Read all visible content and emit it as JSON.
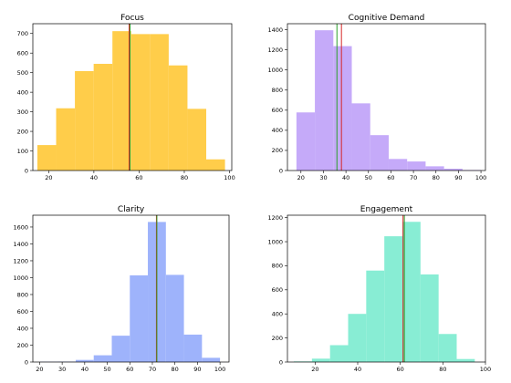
{
  "chart_data": [
    {
      "type": "histogram",
      "title": "Focus",
      "color": "#ffcd4a",
      "xlim": [
        13,
        101
      ],
      "ylim": [
        0,
        750
      ],
      "xticks": [
        20,
        40,
        60,
        80,
        100
      ],
      "yticks": [
        0,
        100,
        200,
        300,
        400,
        500,
        600,
        700
      ],
      "bins": [
        {
          "x0": 15.0,
          "x1": 23.3,
          "value": 130
        },
        {
          "x0": 23.3,
          "x1": 31.6,
          "value": 318
        },
        {
          "x0": 31.6,
          "x1": 39.9,
          "value": 508
        },
        {
          "x0": 39.9,
          "x1": 48.2,
          "value": 545
        },
        {
          "x0": 48.2,
          "x1": 56.5,
          "value": 712
        },
        {
          "x0": 56.5,
          "x1": 64.8,
          "value": 697
        },
        {
          "x0": 64.8,
          "x1": 73.1,
          "value": 697
        },
        {
          "x0": 73.1,
          "x1": 81.4,
          "value": 537
        },
        {
          "x0": 81.4,
          "x1": 89.7,
          "value": 315
        },
        {
          "x0": 89.7,
          "x1": 98.0,
          "value": 57
        }
      ],
      "ref_lines": [
        {
          "x": 55.6,
          "color": "#d62728"
        },
        {
          "x": 56.0,
          "color": "#2ca02c"
        }
      ]
    },
    {
      "type": "histogram",
      "title": "Cognitive Demand",
      "color": "#c5aaf9",
      "xlim": [
        14,
        102
      ],
      "ylim": [
        0,
        1460
      ],
      "xticks": [
        20,
        30,
        40,
        50,
        60,
        70,
        80,
        90,
        100
      ],
      "yticks": [
        0,
        200,
        400,
        600,
        800,
        1000,
        1200,
        1400
      ],
      "bins": [
        {
          "x0": 18.0,
          "x1": 26.2,
          "value": 578
        },
        {
          "x0": 26.2,
          "x1": 34.4,
          "value": 1395
        },
        {
          "x0": 34.4,
          "x1": 42.6,
          "value": 1237
        },
        {
          "x0": 42.6,
          "x1": 50.8,
          "value": 668
        },
        {
          "x0": 50.8,
          "x1": 59.0,
          "value": 352
        },
        {
          "x0": 59.0,
          "x1": 67.2,
          "value": 115
        },
        {
          "x0": 67.2,
          "x1": 75.4,
          "value": 90
        },
        {
          "x0": 75.4,
          "x1": 83.6,
          "value": 42
        },
        {
          "x0": 83.6,
          "x1": 91.8,
          "value": 18
        },
        {
          "x0": 91.8,
          "x1": 100.0,
          "value": 5
        }
      ],
      "ref_lines": [
        {
          "x": 38.0,
          "color": "#d62728"
        },
        {
          "x": 36.0,
          "color": "#2ca02c"
        }
      ]
    },
    {
      "type": "histogram",
      "title": "Clarity",
      "color": "#9eb3fb",
      "xlim": [
        17,
        104
      ],
      "ylim": [
        0,
        1740
      ],
      "xticks": [
        20,
        30,
        40,
        50,
        60,
        70,
        80,
        90,
        100
      ],
      "yticks": [
        0,
        200,
        400,
        600,
        800,
        1000,
        1200,
        1400,
        1600
      ],
      "bins": [
        {
          "x0": 20.0,
          "x1": 28.0,
          "value": 3
        },
        {
          "x0": 28.0,
          "x1": 36.0,
          "value": 5
        },
        {
          "x0": 36.0,
          "x1": 44.0,
          "value": 25
        },
        {
          "x0": 44.0,
          "x1": 52.0,
          "value": 80
        },
        {
          "x0": 52.0,
          "x1": 60.0,
          "value": 312
        },
        {
          "x0": 60.0,
          "x1": 68.0,
          "value": 1027
        },
        {
          "x0": 68.0,
          "x1": 76.0,
          "value": 1660
        },
        {
          "x0": 76.0,
          "x1": 84.0,
          "value": 1033
        },
        {
          "x0": 84.0,
          "x1": 92.0,
          "value": 325
        },
        {
          "x0": 92.0,
          "x1": 100.0,
          "value": 50
        }
      ],
      "ref_lines": [
        {
          "x": 71.8,
          "color": "#d62728"
        },
        {
          "x": 72.0,
          "color": "#2ca02c"
        }
      ]
    },
    {
      "type": "histogram",
      "title": "Engagement",
      "color": "#88edd4",
      "xlim": [
        7,
        100
      ],
      "ylim": [
        0,
        1220
      ],
      "xticks": [
        20,
        40,
        60,
        80,
        100
      ],
      "yticks": [
        0,
        200,
        400,
        600,
        800,
        1000,
        1200
      ],
      "bins": [
        {
          "x0": 10.0,
          "x1": 18.5,
          "value": 5
        },
        {
          "x0": 18.5,
          "x1": 27.0,
          "value": 28
        },
        {
          "x0": 27.0,
          "x1": 35.5,
          "value": 140
        },
        {
          "x0": 35.5,
          "x1": 44.0,
          "value": 400
        },
        {
          "x0": 44.0,
          "x1": 52.5,
          "value": 760
        },
        {
          "x0": 52.5,
          "x1": 61.0,
          "value": 1045
        },
        {
          "x0": 61.0,
          "x1": 69.5,
          "value": 1165
        },
        {
          "x0": 69.5,
          "x1": 78.0,
          "value": 728
        },
        {
          "x0": 78.0,
          "x1": 86.5,
          "value": 233
        },
        {
          "x0": 86.5,
          "x1": 95.0,
          "value": 25
        }
      ],
      "ref_lines": [
        {
          "x": 61.3,
          "color": "#d62728"
        },
        {
          "x": 61.9,
          "color": "#2ca02c"
        }
      ]
    }
  ]
}
